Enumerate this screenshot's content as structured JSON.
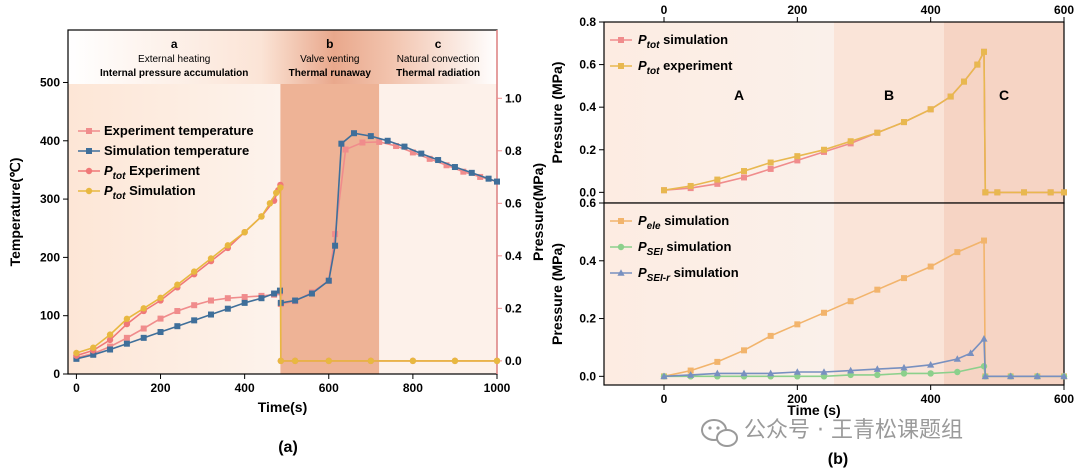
{
  "chart_data": [
    {
      "id": "a",
      "type": "line",
      "panel_label": "(a)",
      "xlabel": "Time(s)",
      "ylabel": "Temperature(℃)",
      "y2label": "Pressure(MPa)",
      "xlim": [
        -20,
        1000
      ],
      "ylim": [
        0,
        590
      ],
      "y2lim": [
        -0.05,
        1.26
      ],
      "xticks": [
        0,
        200,
        400,
        600,
        800,
        1000
      ],
      "yticks": [
        0,
        100,
        200,
        300,
        400,
        500
      ],
      "y2ticks": [
        0.0,
        0.2,
        0.4,
        0.6,
        0.8,
        1.0
      ],
      "regions": [
        {
          "letter": "a",
          "line1": "External heating",
          "line2": "Internal pressure accumulation",
          "x0": -20,
          "x1": 485
        },
        {
          "letter": "b",
          "line1": "Valve venting",
          "line2": "Thermal runaway",
          "x0": 485,
          "x1": 720
        },
        {
          "letter": "c",
          "line1": "Natural convection",
          "line2": "Thermal radiation",
          "x0": 720,
          "x1": 1000
        }
      ],
      "series": [
        {
          "name": "Experiment temperature",
          "axis": "left",
          "color": "#f08c8c",
          "marker": "square",
          "x": [
            0,
            40,
            80,
            120,
            160,
            200,
            240,
            280,
            320,
            360,
            400,
            440,
            470,
            484,
            486,
            520,
            560,
            600,
            615,
            640,
            680,
            720,
            760,
            800,
            840,
            880,
            920,
            960,
            1000
          ],
          "y": [
            28,
            35,
            47,
            62,
            78,
            95,
            108,
            118,
            126,
            130,
            132,
            134,
            136,
            140,
            120,
            125,
            140,
            160,
            240,
            385,
            397,
            398,
            391,
            380,
            369,
            358,
            347,
            338,
            330
          ]
        },
        {
          "name": "Simulation temperature",
          "axis": "left",
          "color": "#3f6f9a",
          "marker": "square",
          "x": [
            0,
            40,
            80,
            120,
            160,
            200,
            240,
            280,
            320,
            360,
            400,
            440,
            470,
            484,
            486,
            520,
            560,
            600,
            615,
            630,
            660,
            700,
            740,
            780,
            820,
            860,
            900,
            940,
            980,
            1000
          ],
          "y": [
            26,
            33,
            42,
            52,
            62,
            72,
            82,
            92,
            102,
            112,
            122,
            130,
            138,
            143,
            122,
            126,
            138,
            160,
            220,
            395,
            413,
            408,
            400,
            390,
            378,
            367,
            355,
            345,
            335,
            330
          ]
        },
        {
          "name": "P_tot Experiment",
          "axis": "right",
          "color": "#f07878",
          "marker": "circle",
          "x": [
            0,
            40,
            80,
            120,
            160,
            200,
            240,
            280,
            320,
            360,
            400,
            440,
            470,
            480,
            485,
            486,
            520,
            600,
            700,
            800,
            900,
            1000
          ],
          "y": [
            0.02,
            0.04,
            0.08,
            0.14,
            0.19,
            0.23,
            0.28,
            0.33,
            0.38,
            0.43,
            0.49,
            0.55,
            0.61,
            0.65,
            0.67,
            0.0,
            0.0,
            0.0,
            0.0,
            0.0,
            0.0,
            0.0
          ]
        },
        {
          "name": "P_tot Simulation",
          "axis": "right",
          "color": "#e8b840",
          "marker": "circle",
          "x": [
            0,
            40,
            80,
            120,
            160,
            200,
            240,
            280,
            320,
            360,
            400,
            440,
            460,
            475,
            485,
            486,
            520,
            600,
            700,
            800,
            900,
            1000
          ],
          "y": [
            0.03,
            0.05,
            0.1,
            0.16,
            0.2,
            0.24,
            0.29,
            0.34,
            0.39,
            0.44,
            0.49,
            0.55,
            0.6,
            0.64,
            0.66,
            0.0,
            0.0,
            0.0,
            0.0,
            0.0,
            0.0,
            0.0
          ]
        }
      ]
    },
    {
      "id": "b_top",
      "type": "line",
      "ylabel": "Pressure (MPa)",
      "xlim": [
        -90,
        600
      ],
      "ylim": [
        -0.05,
        0.8
      ],
      "xticks": [
        0,
        200,
        400,
        600
      ],
      "yticks": [
        0.0,
        0.2,
        0.4,
        0.6,
        0.8
      ],
      "regions": [
        {
          "letter": "A",
          "x0": -90,
          "x1": 255
        },
        {
          "letter": "B",
          "x0": 255,
          "x1": 420
        },
        {
          "letter": "C",
          "x0": 420,
          "x1": 600
        }
      ],
      "series": [
        {
          "name": "P_tot simulation",
          "color": "#f08c8c",
          "marker": "square",
          "x": [
            0,
            40,
            80,
            120,
            160,
            200,
            240,
            280,
            320,
            360,
            400,
            430,
            450,
            470,
            480,
            482,
            500,
            540,
            580,
            600
          ],
          "y": [
            0.01,
            0.02,
            0.04,
            0.07,
            0.11,
            0.15,
            0.19,
            0.23,
            0.28,
            0.33,
            0.39,
            0.45,
            0.52,
            0.6,
            0.66,
            0.0,
            0.0,
            0.0,
            0.0,
            0.0
          ]
        },
        {
          "name": "P_tot experiment",
          "color": "#e8b850",
          "marker": "square",
          "x": [
            0,
            40,
            80,
            120,
            160,
            200,
            240,
            280,
            320,
            360,
            400,
            430,
            450,
            470,
            480,
            482,
            500,
            540,
            580,
            600
          ],
          "y": [
            0.01,
            0.03,
            0.06,
            0.1,
            0.14,
            0.17,
            0.2,
            0.24,
            0.28,
            0.33,
            0.39,
            0.45,
            0.52,
            0.6,
            0.66,
            0.0,
            0.0,
            0.0,
            0.0,
            0.0
          ]
        }
      ]
    },
    {
      "id": "b_bottom",
      "type": "line",
      "panel_label": "(b)",
      "xlabel": "Time (s)",
      "ylabel": "Pressure (MPa)",
      "xlim": [
        -90,
        600
      ],
      "ylim": [
        -0.03,
        0.6
      ],
      "xticks": [
        0,
        200,
        400,
        600
      ],
      "yticks": [
        0.0,
        0.2,
        0.4,
        0.6
      ],
      "regions": [
        {
          "x0": -90,
          "x1": 255
        },
        {
          "x0": 255,
          "x1": 420
        },
        {
          "x0": 420,
          "x1": 600
        }
      ],
      "series": [
        {
          "name": "P_ele simulation",
          "color": "#f2b46c",
          "marker": "square",
          "x": [
            0,
            40,
            80,
            120,
            160,
            200,
            240,
            280,
            320,
            360,
            400,
            440,
            480,
            482,
            520,
            560,
            600
          ],
          "y": [
            0.0,
            0.02,
            0.05,
            0.09,
            0.14,
            0.18,
            0.22,
            0.26,
            0.3,
            0.34,
            0.38,
            0.43,
            0.47,
            0.0,
            0.0,
            0.0,
            0.0
          ]
        },
        {
          "name": "P_SEI simulation",
          "color": "#8cd08c",
          "marker": "circle",
          "x": [
            0,
            40,
            80,
            120,
            160,
            200,
            240,
            280,
            320,
            360,
            400,
            440,
            480,
            482,
            520,
            560,
            600
          ],
          "y": [
            0.0,
            0.0,
            0.0,
            0.0,
            0.0,
            0.0,
            0.0,
            0.005,
            0.005,
            0.01,
            0.01,
            0.015,
            0.035,
            0.0,
            0.0,
            0.0,
            0.0
          ]
        },
        {
          "name": "P_SEI-r simulation",
          "color": "#7890c0",
          "marker": "triangle",
          "x": [
            0,
            40,
            80,
            120,
            160,
            200,
            240,
            280,
            320,
            360,
            400,
            440,
            460,
            480,
            482,
            520,
            560,
            600
          ],
          "y": [
            0.0,
            0.005,
            0.01,
            0.01,
            0.01,
            0.015,
            0.015,
            0.02,
            0.025,
            0.03,
            0.04,
            0.06,
            0.08,
            0.13,
            0.0,
            0.0,
            0.0,
            0.0
          ]
        }
      ]
    }
  ],
  "legend_a": [
    {
      "base": "Experiment temperature",
      "sub": "",
      "tail": ""
    },
    {
      "base": "Simulation temperature",
      "sub": "",
      "tail": ""
    },
    {
      "base": "P",
      "sub": "tot",
      "tail": " Experiment"
    },
    {
      "base": "P",
      "sub": "tot",
      "tail": " Simulation"
    }
  ],
  "legend_b_top": [
    {
      "base": "P",
      "sub": "tot",
      "tail": " simulation"
    },
    {
      "base": "P",
      "sub": "tot",
      "tail": " experiment"
    }
  ],
  "legend_b_bottom": [
    {
      "base": "P",
      "sub": "ele",
      "tail": " simulation"
    },
    {
      "base": "P",
      "sub": "SEI",
      "tail": " simulation"
    },
    {
      "base": "P",
      "sub": "SEI-r",
      "tail": " simulation"
    }
  ],
  "watermark": "公众号 · 王青松课题组"
}
